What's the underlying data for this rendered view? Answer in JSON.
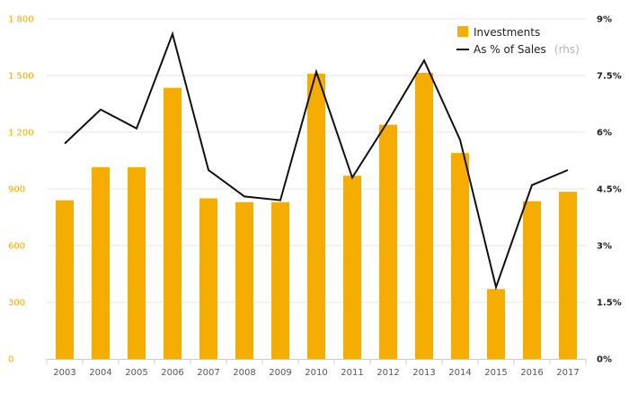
{
  "chart_data": {
    "type": "bar",
    "categories": [
      "2003",
      "2004",
      "2005",
      "2006",
      "2007",
      "2008",
      "2009",
      "2010",
      "2011",
      "2012",
      "2013",
      "2014",
      "2015",
      "2016",
      "2017"
    ],
    "series": [
      {
        "name": "Investments",
        "type": "bar",
        "axis": "left",
        "color": "#f5ad00",
        "values": [
          840,
          1015,
          1015,
          1435,
          850,
          830,
          830,
          1510,
          970,
          1240,
          1515,
          1090,
          370,
          835,
          885
        ]
      },
      {
        "name": "As % of Sales",
        "legend_note": "(rhs)",
        "type": "line",
        "axis": "right",
        "color": "#111111",
        "values": [
          5.7,
          6.6,
          6.1,
          8.6,
          5.0,
          4.3,
          4.2,
          7.6,
          4.8,
          6.3,
          7.9,
          5.8,
          1.9,
          4.6,
          5.0
        ]
      }
    ],
    "y_left": {
      "ylim": [
        0,
        1800
      ],
      "ticks": [
        0,
        300,
        600,
        900,
        1200,
        1500,
        1800
      ],
      "tick_labels": [
        "0",
        "300",
        "600",
        "900",
        "1 200",
        "1 500",
        "1 800"
      ]
    },
    "y_right": {
      "ylim": [
        0,
        9
      ],
      "ticks": [
        0,
        1.5,
        3,
        4.5,
        6,
        7.5,
        9
      ],
      "tick_labels": [
        "0%",
        "1.5%",
        "3%",
        "4.5%",
        "6%",
        "7.5%",
        "9%"
      ]
    },
    "grid": true,
    "legend_position": "top-right",
    "title": "",
    "xlabel": "",
    "ylabel": ""
  },
  "colors": {
    "bar": "#f5ad00",
    "line": "#111111",
    "grid": "#e6e6e6",
    "left_tick": "#f0ab00"
  }
}
